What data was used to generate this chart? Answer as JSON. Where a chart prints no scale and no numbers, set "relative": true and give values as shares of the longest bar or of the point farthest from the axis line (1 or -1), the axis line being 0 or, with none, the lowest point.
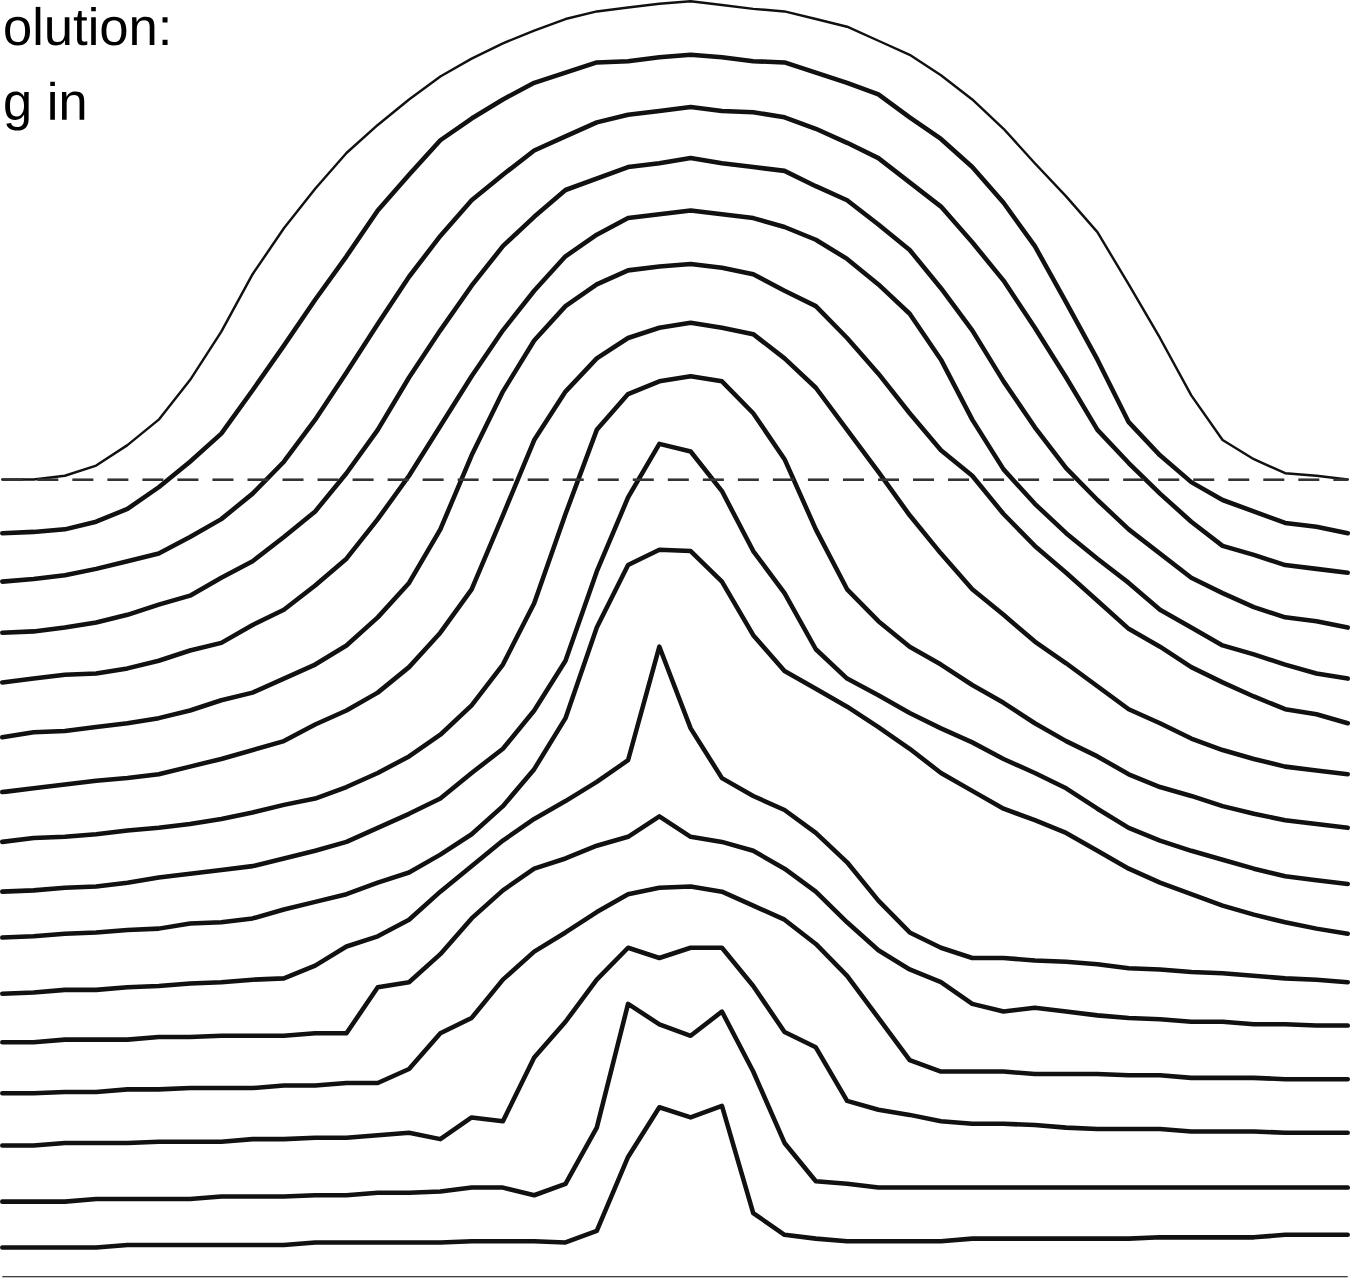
{
  "chart_data": {
    "type": "line",
    "relative": true,
    "marker": "none",
    "categories": [
      null,
      null,
      null,
      null,
      null,
      null,
      null,
      null,
      null,
      null,
      null,
      null,
      null,
      null,
      null,
      null,
      null,
      null,
      null,
      null,
      null,
      null,
      null,
      null,
      null,
      null,
      null,
      null,
      null,
      null,
      null,
      null,
      null,
      null,
      null,
      null,
      null,
      null,
      null,
      null,
      null,
      null,
      null,
      null
    ],
    "annotations": [
      "olution:",
      "g in"
    ],
    "ref_lines": [
      {
        "axis": "y",
        "value": 0.625,
        "line_style": "dashed",
        "color": "#333333"
      }
    ],
    "series": [
      {
        "color": "#111111",
        "values": [
          0.625,
          0.625,
          0.628,
          0.636,
          0.652,
          0.672,
          0.703,
          0.741,
          0.786,
          0.822,
          0.853,
          0.881,
          0.903,
          0.923,
          0.941,
          0.955,
          0.967,
          0.977,
          0.986,
          0.992,
          0.995,
          0.998,
          1,
          0.997,
          0.994,
          0.992,
          0.986,
          0.98,
          0.969,
          0.958,
          0.942,
          0.923,
          0.9,
          0.873,
          0.847,
          0.819,
          0.778,
          0.736,
          0.691,
          0.656,
          0.641,
          0.63,
          0.628,
          0.625
        ]
      },
      {
        "color": "#111111",
        "values": [
          0.583,
          0.584,
          0.586,
          0.592,
          0.602,
          0.619,
          0.639,
          0.661,
          0.695,
          0.73,
          0.766,
          0.8,
          0.836,
          0.864,
          0.891,
          0.908,
          0.923,
          0.936,
          0.944,
          0.952,
          0.953,
          0.956,
          0.958,
          0.956,
          0.953,
          0.952,
          0.944,
          0.936,
          0.927,
          0.909,
          0.892,
          0.87,
          0.842,
          0.808,
          0.764,
          0.719,
          0.67,
          0.644,
          0.623,
          0.609,
          0.6,
          0.591,
          0.588,
          0.583
        ]
      },
      {
        "color": "#111111",
        "values": [
          0.545,
          0.547,
          0.55,
          0.555,
          0.561,
          0.567,
          0.58,
          0.594,
          0.614,
          0.639,
          0.672,
          0.709,
          0.747,
          0.784,
          0.816,
          0.844,
          0.864,
          0.883,
          0.894,
          0.905,
          0.911,
          0.914,
          0.917,
          0.914,
          0.913,
          0.909,
          0.9,
          0.889,
          0.877,
          0.858,
          0.839,
          0.811,
          0.781,
          0.744,
          0.705,
          0.664,
          0.638,
          0.614,
          0.592,
          0.573,
          0.566,
          0.558,
          0.555,
          0.552
        ]
      },
      {
        "color": "#111111",
        "values": [
          0.505,
          0.506,
          0.509,
          0.513,
          0.519,
          0.527,
          0.534,
          0.548,
          0.561,
          0.58,
          0.6,
          0.63,
          0.664,
          0.705,
          0.742,
          0.777,
          0.808,
          0.831,
          0.852,
          0.861,
          0.87,
          0.873,
          0.877,
          0.873,
          0.87,
          0.867,
          0.855,
          0.844,
          0.825,
          0.805,
          0.775,
          0.742,
          0.702,
          0.666,
          0.634,
          0.609,
          0.586,
          0.567,
          0.548,
          0.536,
          0.525,
          0.517,
          0.514,
          0.509
        ]
      },
      {
        "color": "#111111",
        "values": [
          0.466,
          0.469,
          0.472,
          0.473,
          0.477,
          0.483,
          0.491,
          0.497,
          0.511,
          0.523,
          0.542,
          0.563,
          0.594,
          0.628,
          0.667,
          0.706,
          0.742,
          0.773,
          0.8,
          0.817,
          0.83,
          0.833,
          0.836,
          0.833,
          0.83,
          0.823,
          0.813,
          0.798,
          0.778,
          0.755,
          0.719,
          0.672,
          0.633,
          0.606,
          0.583,
          0.563,
          0.544,
          0.523,
          0.509,
          0.495,
          0.488,
          0.48,
          0.473,
          0.469
        ]
      },
      {
        "color": "#111111",
        "values": [
          0.423,
          0.427,
          0.428,
          0.431,
          0.434,
          0.438,
          0.444,
          0.452,
          0.458,
          0.469,
          0.48,
          0.495,
          0.517,
          0.544,
          0.586,
          0.644,
          0.694,
          0.734,
          0.761,
          0.778,
          0.789,
          0.792,
          0.794,
          0.791,
          0.786,
          0.773,
          0.761,
          0.736,
          0.708,
          0.677,
          0.648,
          0.628,
          0.598,
          0.573,
          0.552,
          0.53,
          0.508,
          0.494,
          0.478,
          0.466,
          0.455,
          0.445,
          0.441,
          0.434
        ]
      },
      {
        "color": "#111111",
        "values": [
          0.38,
          0.383,
          0.386,
          0.389,
          0.391,
          0.394,
          0.4,
          0.406,
          0.413,
          0.42,
          0.433,
          0.444,
          0.458,
          0.478,
          0.505,
          0.539,
          0.597,
          0.656,
          0.694,
          0.72,
          0.736,
          0.744,
          0.748,
          0.744,
          0.739,
          0.72,
          0.697,
          0.664,
          0.631,
          0.597,
          0.567,
          0.539,
          0.519,
          0.498,
          0.481,
          0.463,
          0.445,
          0.434,
          0.422,
          0.413,
          0.406,
          0.4,
          0.397,
          0.394
        ]
      },
      {
        "color": "#111111",
        "values": [
          0.341,
          0.344,
          0.345,
          0.347,
          0.35,
          0.352,
          0.355,
          0.359,
          0.364,
          0.37,
          0.375,
          0.384,
          0.395,
          0.408,
          0.425,
          0.448,
          0.48,
          0.528,
          0.598,
          0.664,
          0.692,
          0.702,
          0.706,
          0.702,
          0.677,
          0.641,
          0.586,
          0.539,
          0.514,
          0.494,
          0.48,
          0.464,
          0.45,
          0.434,
          0.42,
          0.408,
          0.394,
          0.384,
          0.377,
          0.369,
          0.363,
          0.358,
          0.355,
          0.352
        ]
      },
      {
        "color": "#111111",
        "values": [
          0.302,
          0.303,
          0.305,
          0.306,
          0.309,
          0.313,
          0.316,
          0.319,
          0.322,
          0.328,
          0.334,
          0.341,
          0.352,
          0.363,
          0.375,
          0.395,
          0.414,
          0.444,
          0.483,
          0.553,
          0.611,
          0.653,
          0.647,
          0.616,
          0.569,
          0.536,
          0.492,
          0.469,
          0.456,
          0.442,
          0.43,
          0.419,
          0.406,
          0.395,
          0.383,
          0.367,
          0.352,
          0.342,
          0.334,
          0.327,
          0.32,
          0.314,
          0.311,
          0.308
        ]
      },
      {
        "color": "#111111",
        "values": [
          0.266,
          0.267,
          0.269,
          0.27,
          0.272,
          0.273,
          0.277,
          0.278,
          0.281,
          0.288,
          0.294,
          0.3,
          0.309,
          0.317,
          0.331,
          0.347,
          0.369,
          0.398,
          0.438,
          0.509,
          0.558,
          0.57,
          0.569,
          0.545,
          0.503,
          0.475,
          0.461,
          0.447,
          0.431,
          0.414,
          0.395,
          0.381,
          0.367,
          0.358,
          0.348,
          0.334,
          0.32,
          0.309,
          0.3,
          0.291,
          0.284,
          0.278,
          0.273,
          0.269
        ]
      },
      {
        "color": "#111111",
        "values": [
          0.222,
          0.223,
          0.225,
          0.225,
          0.227,
          0.228,
          0.23,
          0.231,
          0.233,
          0.234,
          0.244,
          0.259,
          0.267,
          0.28,
          0.302,
          0.322,
          0.342,
          0.359,
          0.373,
          0.388,
          0.405,
          0.494,
          0.43,
          0.391,
          0.377,
          0.366,
          0.348,
          0.325,
          0.295,
          0.27,
          0.258,
          0.25,
          0.25,
          0.248,
          0.247,
          0.245,
          0.242,
          0.241,
          0.239,
          0.238,
          0.236,
          0.234,
          0.233,
          0.231
        ]
      },
      {
        "color": "#111111",
        "values": [
          0.184,
          0.184,
          0.186,
          0.186,
          0.186,
          0.188,
          0.188,
          0.189,
          0.189,
          0.189,
          0.191,
          0.191,
          0.227,
          0.231,
          0.253,
          0.281,
          0.303,
          0.32,
          0.328,
          0.338,
          0.345,
          0.361,
          0.345,
          0.341,
          0.334,
          0.32,
          0.302,
          0.278,
          0.256,
          0.241,
          0.231,
          0.214,
          0.208,
          0.211,
          0.208,
          0.205,
          0.203,
          0.202,
          0.2,
          0.2,
          0.198,
          0.198,
          0.197,
          0.197
        ]
      },
      {
        "color": "#111111",
        "values": [
          0.144,
          0.144,
          0.145,
          0.145,
          0.147,
          0.147,
          0.148,
          0.148,
          0.148,
          0.15,
          0.15,
          0.152,
          0.152,
          0.163,
          0.191,
          0.203,
          0.233,
          0.255,
          0.27,
          0.286,
          0.3,
          0.305,
          0.306,
          0.302,
          0.291,
          0.28,
          0.261,
          0.236,
          0.203,
          0.17,
          0.161,
          0.161,
          0.161,
          0.159,
          0.159,
          0.159,
          0.158,
          0.158,
          0.156,
          0.156,
          0.156,
          0.155,
          0.155,
          0.155
        ]
      },
      {
        "color": "#111111",
        "values": [
          0.103,
          0.103,
          0.105,
          0.105,
          0.105,
          0.106,
          0.106,
          0.106,
          0.108,
          0.108,
          0.109,
          0.109,
          0.111,
          0.113,
          0.108,
          0.125,
          0.122,
          0.172,
          0.2,
          0.233,
          0.258,
          0.25,
          0.258,
          0.258,
          0.228,
          0.192,
          0.18,
          0.138,
          0.131,
          0.127,
          0.122,
          0.12,
          0.12,
          0.119,
          0.117,
          0.116,
          0.116,
          0.116,
          0.114,
          0.114,
          0.114,
          0.113,
          0.113,
          0.113
        ]
      },
      {
        "color": "#111111",
        "values": [
          0.059,
          0.059,
          0.059,
          0.061,
          0.061,
          0.061,
          0.061,
          0.063,
          0.063,
          0.063,
          0.064,
          0.064,
          0.066,
          0.066,
          0.067,
          0.07,
          0.07,
          0.064,
          0.073,
          0.117,
          0.214,
          0.198,
          0.189,
          0.208,
          0.161,
          0.105,
          0.075,
          0.073,
          0.07,
          0.07,
          0.07,
          0.07,
          0.07,
          0.07,
          0.07,
          0.07,
          0.07,
          0.07,
          0.07,
          0.07,
          0.07,
          0.07,
          0.07,
          0.07
        ]
      },
      {
        "color": "#111111",
        "values": [
          0.023,
          0.023,
          0.023,
          0.023,
          0.025,
          0.025,
          0.025,
          0.025,
          0.025,
          0.025,
          0.027,
          0.027,
          0.027,
          0.027,
          0.027,
          0.028,
          0.028,
          0.028,
          0.027,
          0.036,
          0.094,
          0.133,
          0.125,
          0.134,
          0.05,
          0.033,
          0.03,
          0.028,
          0.028,
          0.028,
          0.028,
          0.03,
          0.03,
          0.03,
          0.03,
          0.03,
          0.03,
          0.031,
          0.031,
          0.031,
          0.031,
          0.033,
          0.033,
          0.033
        ]
      }
    ]
  }
}
